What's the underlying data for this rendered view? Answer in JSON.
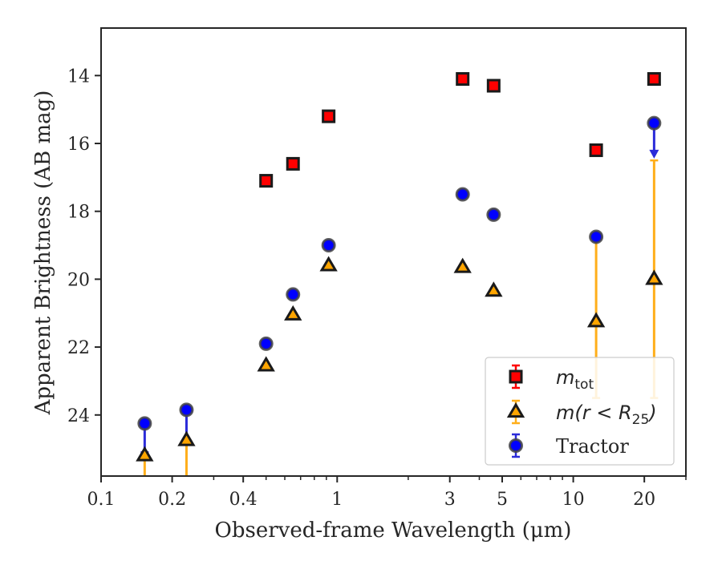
{
  "chart_data": {
    "type": "scatter",
    "title": "",
    "xlabel": "Observed-frame Wavelength (μm)",
    "ylabel": "Apparent Brightness (AB mag)",
    "x_scale": "log",
    "xlim": [
      0.1,
      30
    ],
    "ylim": [
      25.8,
      12.6
    ],
    "y_inverted": true,
    "grid": false,
    "legend_position": "lower-right",
    "x_ticks": [
      {
        "value": 0.1,
        "label": "0.1"
      },
      {
        "value": 0.2,
        "label": "0.2"
      },
      {
        "value": 0.4,
        "label": "0.4"
      },
      {
        "value": 1,
        "label": "1"
      },
      {
        "value": 3,
        "label": "3"
      },
      {
        "value": 5,
        "label": "5"
      },
      {
        "value": 10,
        "label": "10"
      },
      {
        "value": 20,
        "label": "20"
      }
    ],
    "x_minor_ticks": [
      0.3,
      0.5,
      0.6,
      0.7,
      0.8,
      0.9,
      2,
      4,
      6,
      7,
      8,
      9,
      30
    ],
    "y_ticks": [
      {
        "value": 14,
        "label": "14"
      },
      {
        "value": 16,
        "label": "16"
      },
      {
        "value": 18,
        "label": "18"
      },
      {
        "value": 20,
        "label": "20"
      },
      {
        "value": 22,
        "label": "22"
      },
      {
        "value": 24,
        "label": "24"
      }
    ],
    "series": [
      {
        "name": "m_tot",
        "legend_label_main": "m",
        "legend_label_sub": "tot",
        "marker": "square",
        "color": "#ff0000",
        "edge_color": "#1a1a1a",
        "points": [
          {
            "x": 0.5,
            "y": 17.1
          },
          {
            "x": 0.65,
            "y": 16.6
          },
          {
            "x": 0.92,
            "y": 15.2
          },
          {
            "x": 3.4,
            "y": 14.1
          },
          {
            "x": 4.6,
            "y": 14.3
          },
          {
            "x": 12.5,
            "y": 16.2
          },
          {
            "x": 22.0,
            "y": 14.1
          }
        ]
      },
      {
        "name": "m(r < R25)",
        "legend_label_main": "m(r < R",
        "legend_label_sub": "25",
        "legend_label_end": ")",
        "marker": "triangle",
        "color": "#ffa500",
        "edge_color": "#1a1a1a",
        "errorbar_color": "#ffae1a",
        "points": [
          {
            "x": 0.153,
            "y": 25.2,
            "err_low": 25.8,
            "err_high": 25.2
          },
          {
            "x": 0.23,
            "y": 24.75,
            "err_low": 25.8,
            "err_high": 24.75
          },
          {
            "x": 0.5,
            "y": 22.55
          },
          {
            "x": 0.65,
            "y": 21.05
          },
          {
            "x": 0.92,
            "y": 19.6
          },
          {
            "x": 3.4,
            "y": 19.65
          },
          {
            "x": 4.6,
            "y": 20.35
          },
          {
            "x": 12.5,
            "y": 21.25,
            "err_low": 23.5,
            "err_high": 18.7
          },
          {
            "x": 22.0,
            "y": 20.0,
            "err_low": 23.5,
            "err_high": 16.5
          }
        ]
      },
      {
        "name": "Tractor",
        "legend_label_main": "Tractor",
        "marker": "circle",
        "color": "#0000ff",
        "edge_color": "#444444",
        "errorbar_color": "#2b2bd9",
        "points": [
          {
            "x": 0.153,
            "y": 24.25,
            "err_low": 25.1,
            "err_high": 24.25
          },
          {
            "x": 0.23,
            "y": 23.85,
            "err_low": 24.7,
            "err_high": 23.85
          },
          {
            "x": 0.5,
            "y": 21.9
          },
          {
            "x": 0.65,
            "y": 20.45
          },
          {
            "x": 0.92,
            "y": 19.0
          },
          {
            "x": 3.4,
            "y": 17.5
          },
          {
            "x": 4.6,
            "y": 18.1
          },
          {
            "x": 12.5,
            "y": 18.75
          },
          {
            "x": 22.0,
            "y": 15.4,
            "upper_limit_arrow_to": 16.4
          }
        ]
      }
    ]
  }
}
